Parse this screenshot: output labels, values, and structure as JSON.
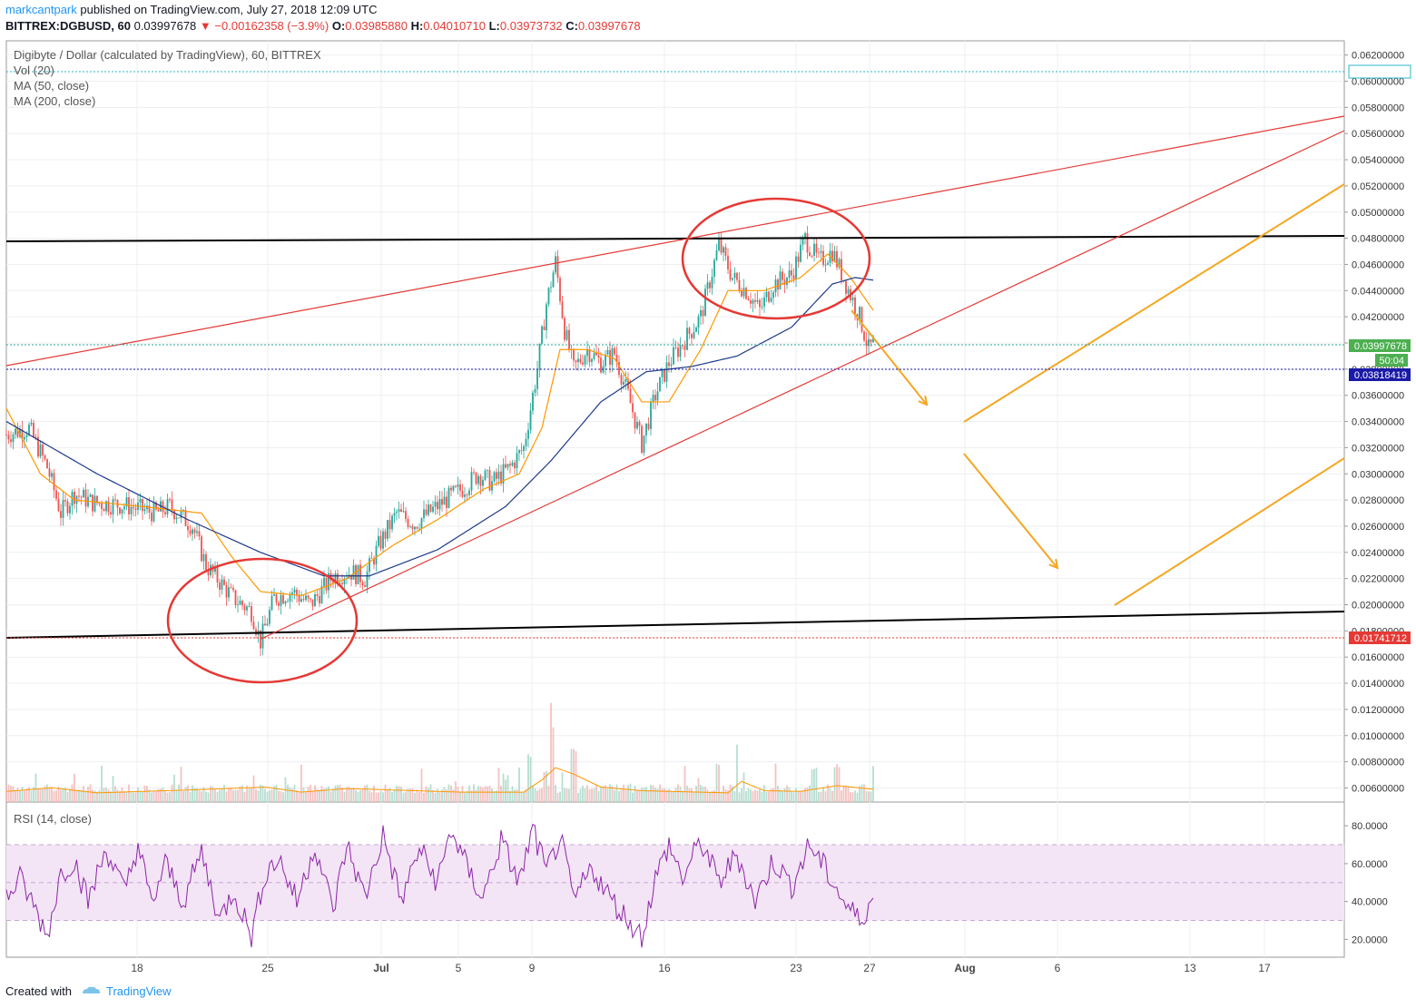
{
  "header": {
    "author": "markcantpark",
    "published": "published on TradingView.com, July 27, 2018 12:09 UTC",
    "symbol": "BITTREX:DGBUSD, 60",
    "last": "0.03997678",
    "change": "−0.00162358 (−3.9%)",
    "open_label": "O:",
    "open": "0.03985880",
    "high_label": "H:",
    "high": "0.04010710",
    "low_label": "L:",
    "low": "0.03973732",
    "close_label": "C:",
    "close": "0.03997678"
  },
  "legend": {
    "title": "Digibyte / Dollar (calculated by TradingView), 60, BITTREX",
    "vol": "Vol (20)",
    "ma50": "MA (50, close)",
    "ma200": "MA (200, close)"
  },
  "rsi_legend": "RSI (14, close)",
  "footer": {
    "created": "Created with",
    "brand": "TradingView"
  },
  "colors": {
    "up": "#26a69a",
    "down": "#ef5350",
    "ma50": "#ff9800",
    "ma200": "#1e3a8a",
    "red_line": "#e53935",
    "black_line": "#000000",
    "arrow": "#f5a623",
    "rsi": "#8e24aa",
    "rsi_band": "#f3e5f5",
    "last_tag": "#4caf50",
    "blue_tag": "#1a1aa8",
    "red_tag": "#e53935",
    "cyan_tag": "#2ab7ca"
  },
  "chart_data": {
    "type": "candlestick",
    "price_axis_ticks": [
      "0.06200000",
      "0.06000000",
      "0.05800000",
      "0.05600000",
      "0.05400000",
      "0.05200000",
      "0.05000000",
      "0.04800000",
      "0.04600000",
      "0.04400000",
      "0.04200000",
      "0.04000000",
      "0.03800000",
      "0.03600000",
      "0.03400000",
      "0.03200000",
      "0.03000000",
      "0.02800000",
      "0.02600000",
      "0.02400000",
      "0.02200000",
      "0.02000000",
      "0.01800000",
      "0.01600000",
      "0.01400000",
      "0.01200000",
      "0.01000000",
      "0.00800000",
      "0.00600000"
    ],
    "rsi_axis_ticks": [
      "80.0000",
      "60.0000",
      "40.0000",
      "20.0000"
    ],
    "x_ticks": [
      "18",
      "25",
      "Jul",
      "5",
      "9",
      "16",
      "23",
      "27",
      "Aug",
      "6",
      "13",
      "17"
    ],
    "price_tags": [
      {
        "value": "0.06101169",
        "style": "cyan"
      },
      {
        "value": "0.03997678",
        "style": "last"
      },
      {
        "value": "50:04",
        "style": "last"
      },
      {
        "value": "0.03818419",
        "style": "blue"
      },
      {
        "value": "0.01741712",
        "style": "red"
      }
    ],
    "price_path": [
      [
        0,
        0.033
      ],
      [
        10,
        0.0335
      ],
      [
        18,
        0.0305
      ],
      [
        24,
        0.027
      ],
      [
        30,
        0.0285
      ],
      [
        38,
        0.0278
      ],
      [
        52,
        0.0276
      ],
      [
        66,
        0.027
      ],
      [
        72,
        0.0275
      ],
      [
        82,
        0.026
      ],
      [
        88,
        0.023
      ],
      [
        100,
        0.0205
      ],
      [
        108,
        0.0195
      ],
      [
        112,
        0.0172
      ],
      [
        118,
        0.0205
      ],
      [
        126,
        0.021
      ],
      [
        134,
        0.02
      ],
      [
        144,
        0.0222
      ],
      [
        152,
        0.0225
      ],
      [
        158,
        0.022
      ],
      [
        164,
        0.0245
      ],
      [
        172,
        0.027
      ],
      [
        180,
        0.0262
      ],
      [
        192,
        0.0278
      ],
      [
        202,
        0.029
      ],
      [
        208,
        0.03
      ],
      [
        214,
        0.0293
      ],
      [
        222,
        0.0305
      ],
      [
        228,
        0.032
      ],
      [
        234,
        0.038
      ],
      [
        238,
        0.043
      ],
      [
        242,
        0.0462
      ],
      [
        246,
        0.041
      ],
      [
        250,
        0.038
      ],
      [
        256,
        0.0395
      ],
      [
        262,
        0.0385
      ],
      [
        268,
        0.0392
      ],
      [
        274,
        0.036
      ],
      [
        280,
        0.0323
      ],
      [
        286,
        0.036
      ],
      [
        292,
        0.0385
      ],
      [
        298,
        0.04
      ],
      [
        306,
        0.042
      ],
      [
        314,
        0.0475
      ],
      [
        320,
        0.045
      ],
      [
        326,
        0.044
      ],
      [
        332,
        0.0425
      ],
      [
        338,
        0.0445
      ],
      [
        346,
        0.0452
      ],
      [
        352,
        0.048
      ],
      [
        358,
        0.0462
      ],
      [
        364,
        0.047
      ],
      [
        370,
        0.0445
      ],
      [
        376,
        0.042
      ],
      [
        380,
        0.0395
      ],
      [
        382,
        0.04
      ]
    ],
    "ma50_path": [
      [
        0,
        0.035
      ],
      [
        15,
        0.03
      ],
      [
        30,
        0.028
      ],
      [
        60,
        0.0275
      ],
      [
        86,
        0.027
      ],
      [
        100,
        0.0235
      ],
      [
        112,
        0.021
      ],
      [
        130,
        0.0207
      ],
      [
        150,
        0.022
      ],
      [
        170,
        0.0245
      ],
      [
        190,
        0.0265
      ],
      [
        210,
        0.0288
      ],
      [
        226,
        0.03
      ],
      [
        236,
        0.0335
      ],
      [
        244,
        0.0395
      ],
      [
        256,
        0.0395
      ],
      [
        268,
        0.0388
      ],
      [
        280,
        0.0355
      ],
      [
        292,
        0.0355
      ],
      [
        306,
        0.0395
      ],
      [
        318,
        0.044
      ],
      [
        334,
        0.044
      ],
      [
        350,
        0.045
      ],
      [
        362,
        0.0468
      ],
      [
        372,
        0.045
      ],
      [
        382,
        0.0425
      ]
    ],
    "ma200_path": [
      [
        0,
        0.034
      ],
      [
        40,
        0.03
      ],
      [
        80,
        0.0265
      ],
      [
        112,
        0.024
      ],
      [
        140,
        0.0222
      ],
      [
        160,
        0.0222
      ],
      [
        190,
        0.0242
      ],
      [
        220,
        0.0275
      ],
      [
        240,
        0.031
      ],
      [
        262,
        0.0355
      ],
      [
        282,
        0.0378
      ],
      [
        302,
        0.0382
      ],
      [
        322,
        0.039
      ],
      [
        346,
        0.0412
      ],
      [
        364,
        0.0445
      ],
      [
        374,
        0.045
      ],
      [
        382,
        0.0448
      ]
    ],
    "volume_spikes": [
      [
        20,
        0.007
      ],
      [
        45,
        0.0064
      ],
      [
        100,
        0.0072
      ],
      [
        148,
        0.007
      ],
      [
        220,
        0.009
      ],
      [
        230,
        0.012
      ],
      [
        240,
        0.0157
      ],
      [
        245,
        0.01
      ],
      [
        250,
        0.013
      ],
      [
        276,
        0.008
      ],
      [
        322,
        0.0133
      ],
      [
        356,
        0.0098
      ],
      [
        366,
        0.0106
      ],
      [
        382,
        0.01
      ]
    ],
    "rsi_path": [
      [
        0,
        42
      ],
      [
        6,
        52
      ],
      [
        12,
        38
      ],
      [
        18,
        22
      ],
      [
        24,
        55
      ],
      [
        30,
        62
      ],
      [
        36,
        40
      ],
      [
        44,
        68
      ],
      [
        52,
        45
      ],
      [
        58,
        70
      ],
      [
        64,
        38
      ],
      [
        70,
        60
      ],
      [
        78,
        40
      ],
      [
        86,
        66
      ],
      [
        94,
        30
      ],
      [
        100,
        46
      ],
      [
        108,
        22
      ],
      [
        114,
        55
      ],
      [
        120,
        63
      ],
      [
        128,
        40
      ],
      [
        136,
        70
      ],
      [
        144,
        35
      ],
      [
        150,
        70
      ],
      [
        158,
        42
      ],
      [
        166,
        75
      ],
      [
        174,
        40
      ],
      [
        182,
        68
      ],
      [
        190,
        50
      ],
      [
        196,
        78
      ],
      [
        204,
        55
      ],
      [
        210,
        42
      ],
      [
        218,
        72
      ],
      [
        226,
        50
      ],
      [
        232,
        78
      ],
      [
        238,
        55
      ],
      [
        244,
        74
      ],
      [
        250,
        40
      ],
      [
        258,
        58
      ],
      [
        266,
        42
      ],
      [
        274,
        30
      ],
      [
        280,
        22
      ],
      [
        286,
        52
      ],
      [
        292,
        70
      ],
      [
        298,
        52
      ],
      [
        306,
        72
      ],
      [
        314,
        50
      ],
      [
        322,
        65
      ],
      [
        330,
        40
      ],
      [
        338,
        62
      ],
      [
        346,
        48
      ],
      [
        354,
        70
      ],
      [
        362,
        55
      ],
      [
        370,
        38
      ],
      [
        376,
        30
      ],
      [
        382,
        42
      ]
    ]
  }
}
